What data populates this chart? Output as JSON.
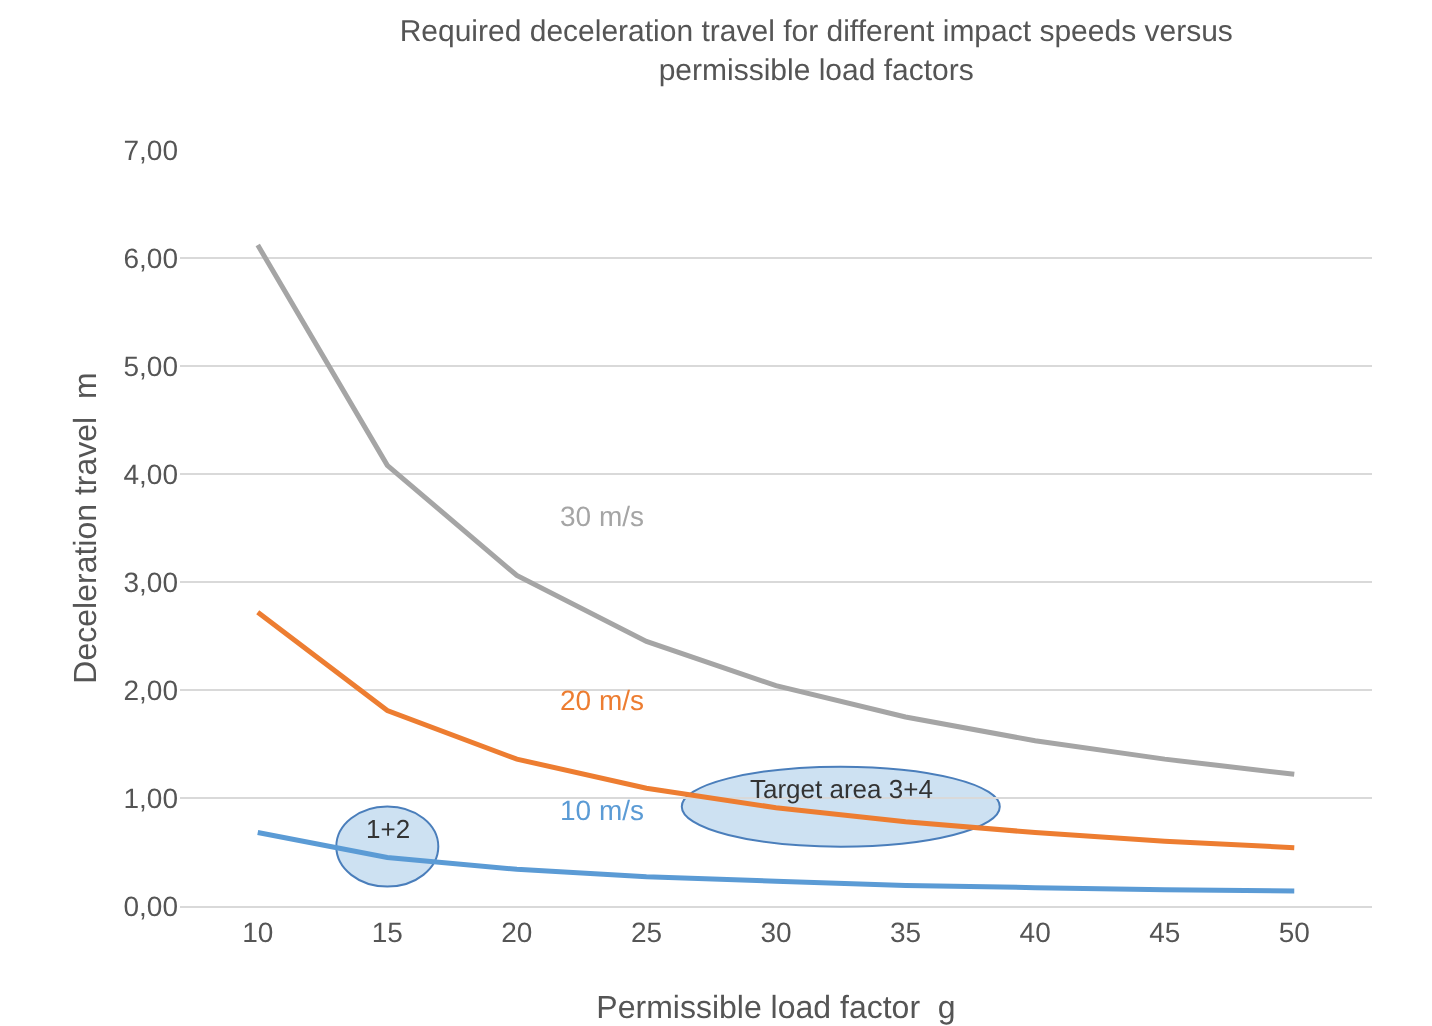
{
  "chart_data": {
    "type": "line",
    "title": "Required deceleration travel for different impact speeds versus\npermissible load factors",
    "xlabel": "Permissible load factor  g",
    "ylabel": "Deceleration travel  m",
    "x": [
      10,
      15,
      20,
      25,
      30,
      35,
      40,
      45,
      50
    ],
    "xlim": [
      7,
      53
    ],
    "xticks": [
      10,
      15,
      20,
      25,
      30,
      35,
      40,
      45,
      50
    ],
    "ylim": [
      0,
      7
    ],
    "yticks": [
      {
        "value": 0,
        "label": "0,00"
      },
      {
        "value": 1,
        "label": "1,00"
      },
      {
        "value": 2,
        "label": "2,00"
      },
      {
        "value": 3,
        "label": "3,00"
      },
      {
        "value": 4,
        "label": "4,00"
      },
      {
        "value": 5,
        "label": "5,00"
      },
      {
        "value": 6,
        "label": "6,00"
      },
      {
        "value": 7,
        "label": "7,00"
      }
    ],
    "series": [
      {
        "name": "30 m/s",
        "color": "#a5a5a5",
        "values": [
          6.12,
          4.08,
          3.06,
          2.45,
          2.04,
          1.75,
          1.53,
          1.36,
          1.22
        ]
      },
      {
        "name": "20 m/s",
        "color": "#ed7d31",
        "values": [
          2.72,
          1.81,
          1.36,
          1.09,
          0.91,
          0.78,
          0.68,
          0.6,
          0.54
        ]
      },
      {
        "name": "10 m/s",
        "color": "#5b9bd5",
        "values": [
          0.68,
          0.45,
          0.34,
          0.27,
          0.23,
          0.19,
          0.17,
          0.15,
          0.14
        ]
      }
    ],
    "annotations": [
      {
        "text": "1+2",
        "x": 15,
        "y": 0.55
      },
      {
        "text": "Target area 3+4",
        "x": 32.5,
        "y": 0.92
      }
    ],
    "grid": "y",
    "legend": false,
    "marker": "none",
    "line_style": "solid"
  }
}
